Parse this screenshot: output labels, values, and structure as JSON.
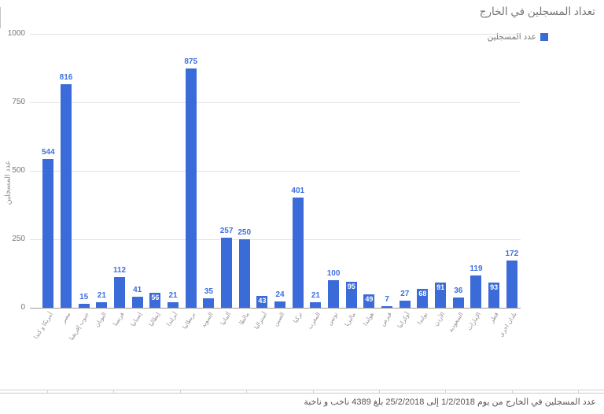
{
  "chart_data": {
    "type": "bar",
    "title": "تعداد المسجلين في الخارج",
    "legend_label": "عدد المسجلين",
    "legend_position": "top-right",
    "ylabel": "عدد المسجلين",
    "xlabel": "",
    "ylim": [
      0,
      1000
    ],
    "yticks": [
      0,
      250,
      500,
      750,
      1000
    ],
    "grid": true,
    "bar_color": "#3b6bd8",
    "annotation_color": "#3e6fe0",
    "categories": [
      "أمريكا و كندا",
      "مصر",
      "جنوب إفريقيا",
      "اليونان",
      "فرنسا",
      "إسبانيا",
      "إيطاليا",
      "أيرلندا",
      "بريطانيا",
      "السويد",
      "ألمانيا",
      "مالطا",
      "أستراليا",
      "الصين",
      "تركيا",
      "المغرب",
      "تونس",
      "ماليزيا",
      "هولندا",
      "قبرص",
      "أوكرانيا",
      "بولندا",
      "الأردن",
      "السعودية",
      "الإمارات",
      "قطر",
      "بلدان اخرى"
    ],
    "values": [
      544,
      816,
      15,
      21,
      112,
      41,
      56,
      21,
      875,
      35,
      257,
      250,
      43,
      24,
      401,
      21,
      100,
      95,
      49,
      7,
      27,
      68,
      91,
      36,
      119,
      93,
      172
    ],
    "inside_label_indices": [
      6,
      12,
      17,
      18,
      21,
      22,
      25
    ]
  },
  "footer": {
    "note": "عدد المسجلين في الخارج من يوم 1/2/2018 إلى 25/2/2018 بلغ 4389 ناخب و ناخبة"
  }
}
